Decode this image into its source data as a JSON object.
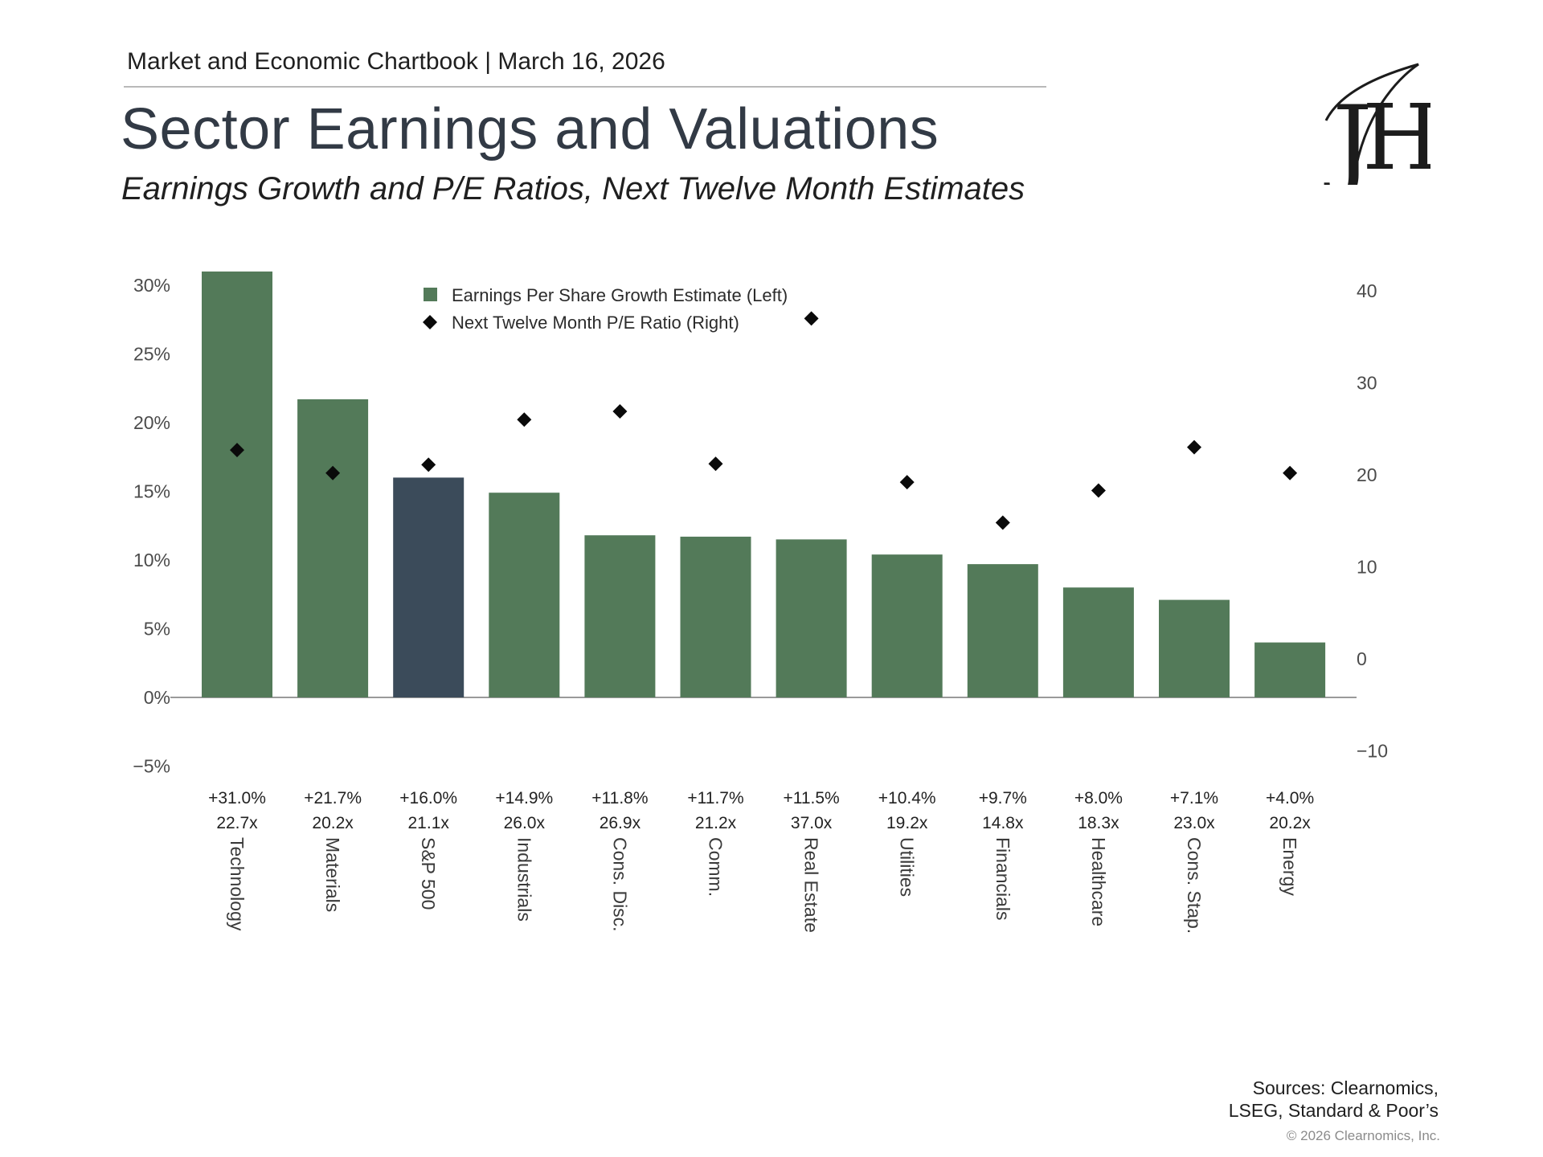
{
  "header": {
    "line": "Market and Economic Chartbook | March 16, 2026",
    "title": "Sector Earnings and Valuations",
    "subtitle": "Earnings Growth and P/E Ratios, Next Twelve Month Estimates"
  },
  "logo": {
    "letters": "JH",
    "icon": "monogram-logo"
  },
  "colors": {
    "bar": "#537a59",
    "highlight_bar": "#3b4b5a",
    "marker": "#0a0a0a",
    "axis": "#9a9a9a",
    "title": "#323a45"
  },
  "footer": {
    "sources_line1": "Sources: Clearnomics,",
    "sources_line2": "LSEG, Standard & Poor’s",
    "copyright": "© 2026 Clearnomics, Inc."
  },
  "chart_data": {
    "type": "bar",
    "categories": [
      "Technology",
      "Materials",
      "S&P 500",
      "Industrials",
      "Cons. Disc.",
      "Comm.",
      "Real Estate",
      "Utilities",
      "Financials",
      "Healthcare",
      "Cons. Stap.",
      "Energy"
    ],
    "highlight_category": "S&P 500",
    "series": [
      {
        "name": "Earnings Per Share Growth Estimate (Left)",
        "kind": "bar",
        "axis": "left",
        "values": [
          31.0,
          21.7,
          16.0,
          14.9,
          11.8,
          11.7,
          11.5,
          10.4,
          9.7,
          8.0,
          7.1,
          4.0
        ]
      },
      {
        "name": "Next Twelve Month P/E Ratio (Right)",
        "kind": "diamond",
        "axis": "right",
        "values": [
          22.7,
          20.2,
          21.1,
          26.0,
          26.9,
          21.2,
          37.0,
          19.2,
          14.8,
          18.3,
          23.0,
          20.2
        ]
      }
    ],
    "growth_labels": [
      "+31.0%",
      "+21.7%",
      "+16.0%",
      "+14.9%",
      "+11.8%",
      "+11.7%",
      "+11.5%",
      "+10.4%",
      "+9.7%",
      "+8.0%",
      "+7.1%",
      "+4.0%"
    ],
    "pe_labels": [
      "22.7x",
      "20.2x",
      "21.1x",
      "26.0x",
      "26.9x",
      "21.2x",
      "37.0x",
      "19.2x",
      "14.8x",
      "18.3x",
      "23.0x",
      "20.2x"
    ],
    "left_axis": {
      "ylim": [
        -5,
        30
      ],
      "ticks": [
        30,
        25,
        20,
        15,
        10,
        5,
        0,
        -5
      ],
      "tick_labels": [
        "30%",
        "25%",
        "20%",
        "15%",
        "10%",
        "5%",
        "0%",
        "−5%"
      ]
    },
    "right_axis": {
      "ylim": [
        -10,
        40
      ],
      "ticks": [
        40,
        30,
        20,
        10,
        0,
        -10
      ],
      "tick_labels": [
        "40",
        "30",
        "20",
        "10",
        "0",
        "−10"
      ]
    },
    "grid": false,
    "legend_position": "top-center"
  }
}
